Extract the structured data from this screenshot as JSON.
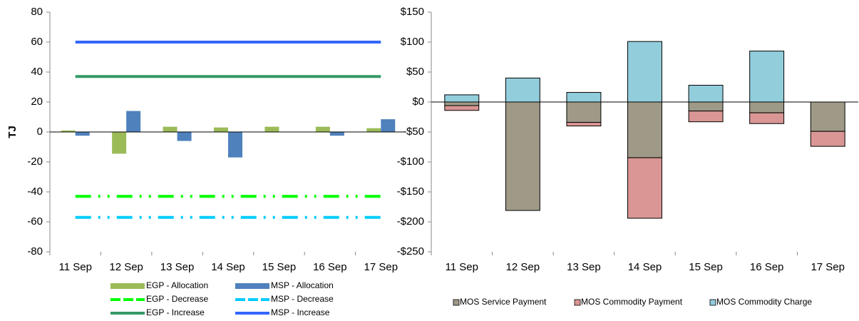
{
  "chart_data": [
    {
      "type": "bar",
      "y_label": "TJ",
      "categories": [
        "11 Sep",
        "12 Sep",
        "13 Sep",
        "14 Sep",
        "15 Sep",
        "16 Sep",
        "17 Sep"
      ],
      "ylim": [
        -80,
        80
      ],
      "yticks": [
        -80,
        -60,
        -40,
        -20,
        0,
        20,
        40,
        60,
        80
      ],
      "series": [
        {
          "name": "EGP - Allocation",
          "type": "bar",
          "color": "#9bbb59",
          "values": [
            1,
            -14.5,
            3.5,
            3,
            3.5,
            3.5,
            2.5
          ]
        },
        {
          "name": "MSP - Allocation",
          "type": "bar",
          "color": "#4f81bd",
          "values": [
            -2.5,
            14,
            -6,
            -17,
            0,
            -2.5,
            8.5
          ]
        },
        {
          "name": "EGP - Decrease",
          "type": "line",
          "dashed": true,
          "color": "#00ff00",
          "values": [
            -43,
            -43,
            -43,
            -43,
            -43,
            -43,
            -43
          ]
        },
        {
          "name": "MSP - Decrease",
          "type": "line",
          "dashed": true,
          "color": "#00ccff",
          "values": [
            -57,
            -57,
            -57,
            -57,
            -57,
            -57,
            -57
          ]
        },
        {
          "name": "EGP - Increase",
          "type": "line",
          "dashed": false,
          "color": "#339966",
          "values": [
            37,
            37,
            37,
            37,
            37,
            37,
            37
          ]
        },
        {
          "name": "MSP - Increase",
          "type": "line",
          "dashed": false,
          "color": "#3366ff",
          "values": [
            60,
            60,
            60,
            60,
            60,
            60,
            60
          ]
        }
      ]
    },
    {
      "type": "stacked_bar",
      "categories": [
        "11 Sep",
        "12 Sep",
        "13 Sep",
        "14 Sep",
        "15 Sep",
        "16 Sep",
        "17 Sep"
      ],
      "ylim": [
        -250,
        150
      ],
      "yticks": [
        {
          "value": -250,
          "label": "-$250"
        },
        {
          "value": -200,
          "label": "-$200"
        },
        {
          "value": -150,
          "label": "-$150"
        },
        {
          "value": -100,
          "label": "-$100"
        },
        {
          "value": -50,
          "label": "-$50"
        },
        {
          "value": 0,
          "label": "$0"
        },
        {
          "value": 50,
          "label": "$50"
        },
        {
          "value": 100,
          "label": "$100"
        },
        {
          "value": 150,
          "label": "$150"
        }
      ],
      "series": [
        {
          "name": "MOS Service Payment",
          "color": "#9e9a87",
          "values": [
            -6,
            -181,
            -34,
            -93,
            -15,
            -18,
            -49
          ]
        },
        {
          "name": "MOS Commodity Payment",
          "color": "#d99694",
          "values": [
            -8,
            0,
            -6,
            -101,
            -18,
            -18,
            -25
          ]
        },
        {
          "name": "MOS Commodity Charge",
          "color": "#92cddc",
          "values": [
            12,
            40,
            16,
            101,
            28,
            85,
            0
          ]
        }
      ]
    }
  ]
}
